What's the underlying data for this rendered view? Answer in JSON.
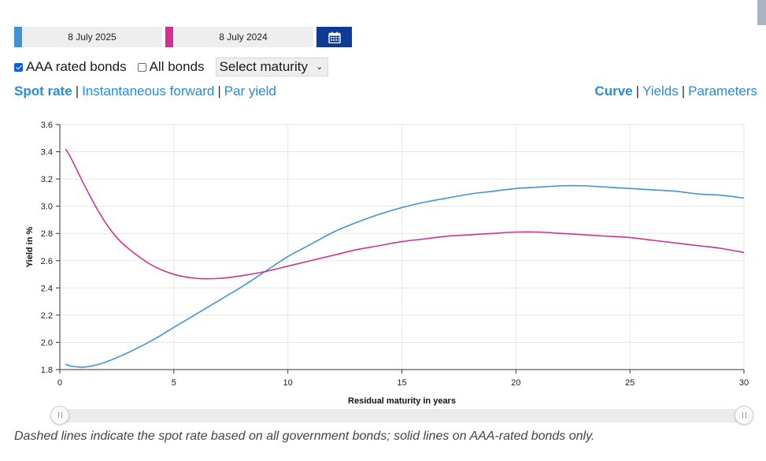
{
  "dates": {
    "first": {
      "label": "8 July 2025",
      "color": "#3e94d6"
    },
    "second": {
      "label": "8 July 2024",
      "color": "#d0338d"
    },
    "calendar_icon": "calendar-icon",
    "calendar_color": "#0c3c93"
  },
  "options": {
    "aaa_label": "AAA rated bonds",
    "aaa_checked": true,
    "all_label": "All bonds",
    "all_checked": false,
    "maturity_select": "Select maturity"
  },
  "left_links": [
    {
      "label": "Spot rate",
      "active": true
    },
    {
      "label": "Instantaneous forward",
      "active": false
    },
    {
      "label": "Par yield",
      "active": false
    }
  ],
  "right_links": [
    {
      "label": "Curve",
      "active": true
    },
    {
      "label": "Yields",
      "active": false
    },
    {
      "label": "Parameters",
      "active": false
    }
  ],
  "separator": "|",
  "chart_data": {
    "type": "line",
    "title": "",
    "xlabel": "Residual maturity in years",
    "ylabel": "Yield in %",
    "xlim": [
      0,
      30
    ],
    "ylim": [
      1.8,
      3.6
    ],
    "xticks": [
      0,
      5,
      10,
      15,
      20,
      25,
      30
    ],
    "yticks": [
      1.8,
      2.0,
      2.2,
      2.4,
      2.6,
      2.8,
      3.0,
      3.2,
      3.4,
      3.6
    ],
    "grid": true,
    "series": [
      {
        "name": "8 July 2025",
        "color": "#3e94d6",
        "x": [
          0.25,
          0.5,
          1,
          1.5,
          2,
          2.5,
          3,
          4,
          5,
          6,
          7,
          8,
          9,
          10,
          11,
          12,
          13,
          14,
          15,
          16,
          17,
          18,
          19,
          20,
          21,
          22,
          23,
          24,
          25,
          26,
          27,
          28,
          29,
          30
        ],
        "values": [
          1.84,
          1.825,
          1.818,
          1.83,
          1.855,
          1.888,
          1.925,
          2.01,
          2.11,
          2.21,
          2.31,
          2.41,
          2.52,
          2.63,
          2.72,
          2.81,
          2.88,
          2.94,
          2.99,
          3.03,
          3.06,
          3.09,
          3.11,
          3.13,
          3.14,
          3.15,
          3.15,
          3.14,
          3.13,
          3.12,
          3.11,
          3.09,
          3.08,
          3.06
        ]
      },
      {
        "name": "8 July 2024",
        "color": "#d0338d",
        "x": [
          0.25,
          0.5,
          1,
          1.5,
          2,
          2.5,
          3,
          4,
          5,
          6,
          7,
          8,
          9,
          10,
          11,
          12,
          13,
          14,
          15,
          16,
          17,
          18,
          19,
          20,
          21,
          22,
          23,
          24,
          25,
          26,
          27,
          28,
          29,
          30
        ],
        "values": [
          3.42,
          3.35,
          3.18,
          3.02,
          2.88,
          2.77,
          2.69,
          2.57,
          2.5,
          2.47,
          2.47,
          2.49,
          2.52,
          2.56,
          2.6,
          2.64,
          2.68,
          2.71,
          2.74,
          2.76,
          2.78,
          2.79,
          2.8,
          2.81,
          2.81,
          2.8,
          2.79,
          2.78,
          2.77,
          2.75,
          2.73,
          2.71,
          2.69,
          2.66
        ]
      }
    ]
  },
  "slider": {
    "range_start": 0,
    "range_end": 30
  },
  "caption": "Dashed lines indicate the spot rate based on all government bonds; solid lines on AAA-rated bonds only."
}
